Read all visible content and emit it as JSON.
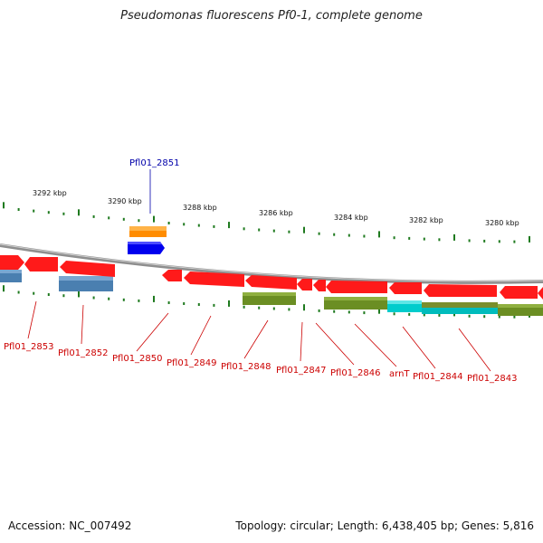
{
  "title": "Pseudomonas fluorescens Pf0-1, complete genome",
  "footer": {
    "accession": "Accession: NC_007492",
    "summary": "Topology: circular; Length: 6,438,405 bp; Genes: 5,816"
  },
  "colors": {
    "backbone": "#8e8e8e",
    "forward_gene": "#ff1a1a",
    "tick": "#1f7a1f",
    "label_line": "#cc0000",
    "highlight_label": "#0000aa",
    "orange_feature": "#ff9900",
    "blue_feature": "#0000ee",
    "steel_feature": "#4a7fb0",
    "olive_feature": "#6b8e23",
    "cyan_feature": "#00cccc"
  },
  "scale_labels": [
    "3292 kbp",
    "3290 kbp",
    "3288 kbp",
    "3286 kbp",
    "3284 kbp",
    "3282 kbp",
    "3280 kbp"
  ],
  "highlight_gene": "Pfl01_2851",
  "gene_labels": [
    "Pfl01_2853",
    "Pfl01_2852",
    "Pfl01_2850",
    "Pfl01_2849",
    "Pfl01_2848",
    "Pfl01_2847",
    "Pfl01_2846",
    "arnT",
    "Pfl01_2844",
    "Pfl01_2843"
  ]
}
